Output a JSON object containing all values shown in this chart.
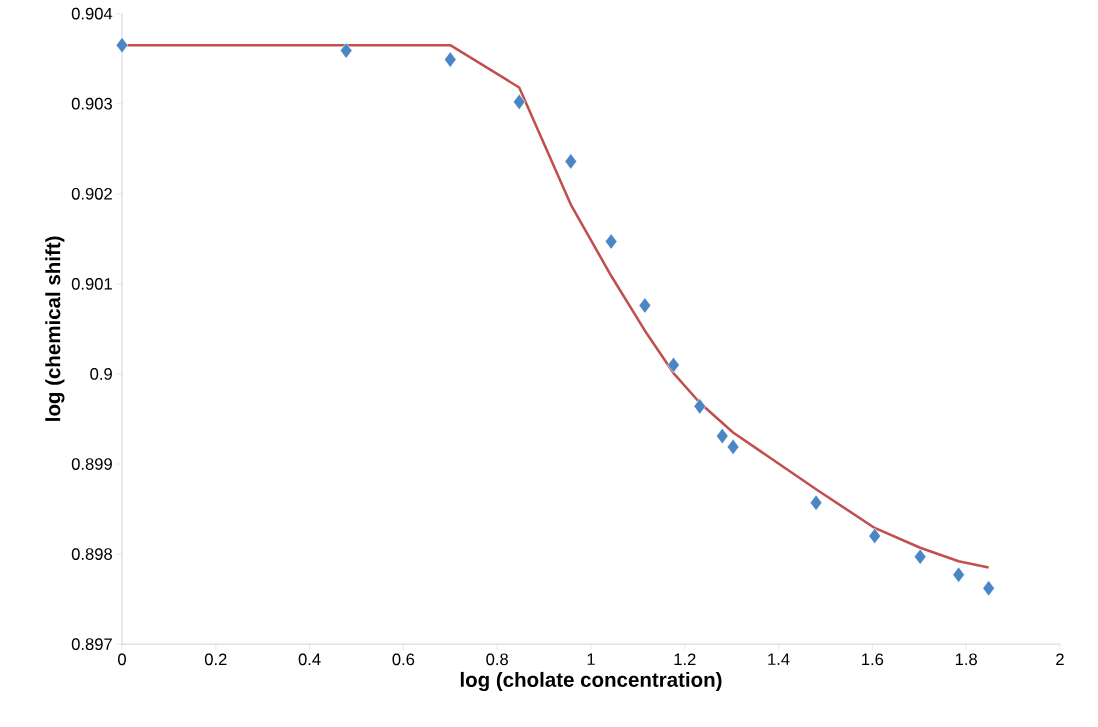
{
  "chart_data": {
    "type": "scatter",
    "xlabel": "log (cholate concentration)",
    "ylabel": "log (chemical shift)",
    "xlim": [
      0,
      2
    ],
    "ylim": [
      0.897,
      0.904
    ],
    "xticks": [
      0,
      0.2,
      0.4,
      0.6,
      0.8,
      1,
      1.2,
      1.4,
      1.6,
      1.8,
      2
    ],
    "yticks": [
      0.897,
      0.898,
      0.899,
      0.9,
      0.901,
      0.902,
      0.903,
      0.904
    ],
    "grid": false,
    "series": [
      {
        "type": "line",
        "color": "#c0504d",
        "marker": "none",
        "line_style": "solid",
        "x": [
          0,
          0.7,
          0.847,
          0.957,
          1.043,
          1.115,
          1.176,
          1.232,
          1.303,
          1.48,
          1.605,
          1.702,
          1.784,
          1.848
        ],
        "values": [
          0.90365,
          0.90365,
          0.90318,
          0.90188,
          0.90109,
          0.90048,
          0.90001,
          0.89968,
          0.89935,
          0.89872,
          0.89829,
          0.89807,
          0.89792,
          0.89785
        ]
      },
      {
        "color": "#4a86c5",
        "marker": "diamond",
        "x": [
          0,
          0.478,
          0.7,
          0.847,
          0.957,
          1.043,
          1.115,
          1.176,
          1.232,
          1.28,
          1.303,
          1.48,
          1.605,
          1.702,
          1.784,
          1.848
        ],
        "values": [
          0.90365,
          0.90359,
          0.90349,
          0.90302,
          0.90236,
          0.90147,
          0.90076,
          0.9001,
          0.89964,
          0.89931,
          0.89919,
          0.89857,
          0.8982,
          0.89797,
          0.89777,
          0.89762
        ]
      }
    ]
  }
}
